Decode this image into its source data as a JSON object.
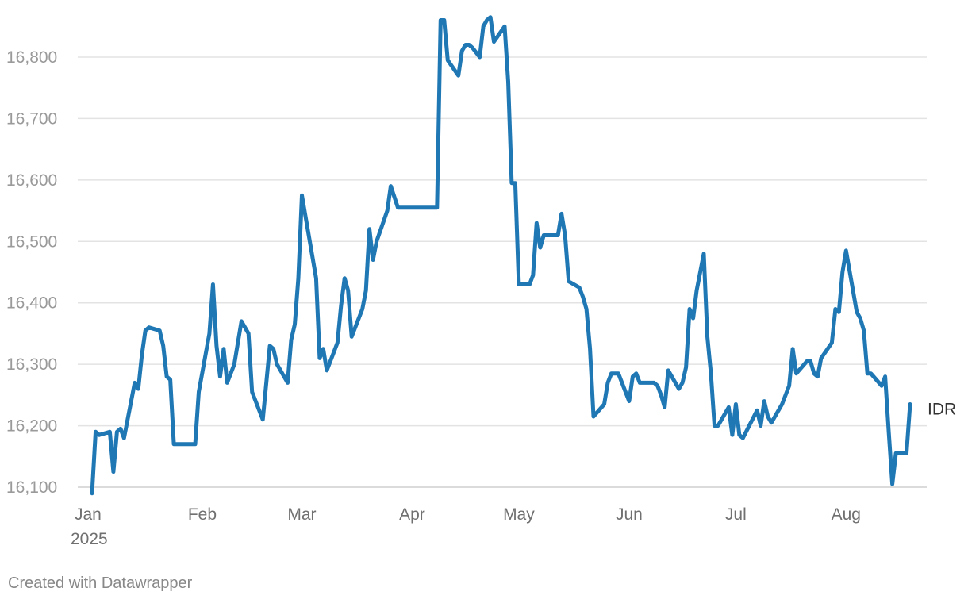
{
  "chart_data": {
    "type": "line",
    "title": "",
    "xlabel": "",
    "ylabel": "",
    "ylim": [
      16085,
      16880
    ],
    "yticks": [
      16100,
      16200,
      16300,
      16400,
      16500,
      16600,
      16700,
      16800
    ],
    "ytick_labels": [
      "16,100",
      "16,200",
      "16,300",
      "16,400",
      "16,500",
      "16,600",
      "16,700",
      "16,800"
    ],
    "xticks": [
      {
        "date": "2025-01-01",
        "label": "Jan",
        "sublabel": "2025"
      },
      {
        "date": "2025-02-01",
        "label": "Feb",
        "sublabel": ""
      },
      {
        "date": "2025-03-01",
        "label": "Mar",
        "sublabel": ""
      },
      {
        "date": "2025-04-01",
        "label": "Apr",
        "sublabel": ""
      },
      {
        "date": "2025-05-01",
        "label": "May",
        "sublabel": ""
      },
      {
        "date": "2025-06-01",
        "label": "Jun",
        "sublabel": ""
      },
      {
        "date": "2025-07-01",
        "label": "Jul",
        "sublabel": ""
      },
      {
        "date": "2025-08-01",
        "label": "Aug",
        "sublabel": ""
      }
    ],
    "grid": true,
    "series": [
      {
        "name": "IDR",
        "color": "#1f77b4",
        "points": [
          [
            "2025-01-01",
            16090
          ],
          [
            "2025-01-02",
            16190
          ],
          [
            "2025-01-03",
            16185
          ],
          [
            "2025-01-06",
            16190
          ],
          [
            "2025-01-07",
            16125
          ],
          [
            "2025-01-08",
            16190
          ],
          [
            "2025-01-09",
            16195
          ],
          [
            "2025-01-10",
            16180
          ],
          [
            "2025-01-13",
            16270
          ],
          [
            "2025-01-14",
            16260
          ],
          [
            "2025-01-15",
            16315
          ],
          [
            "2025-01-16",
            16355
          ],
          [
            "2025-01-17",
            16360
          ],
          [
            "2025-01-20",
            16355
          ],
          [
            "2025-01-21",
            16330
          ],
          [
            "2025-01-22",
            16280
          ],
          [
            "2025-01-23",
            16275
          ],
          [
            "2025-01-24",
            16170
          ],
          [
            "2025-01-30",
            16170
          ],
          [
            "2025-01-31",
            16255
          ],
          [
            "2025-02-03",
            16350
          ],
          [
            "2025-02-04",
            16430
          ],
          [
            "2025-02-05",
            16330
          ],
          [
            "2025-02-06",
            16280
          ],
          [
            "2025-02-07",
            16325
          ],
          [
            "2025-02-08",
            16270
          ],
          [
            "2025-02-10",
            16300
          ],
          [
            "2025-02-12",
            16370
          ],
          [
            "2025-02-14",
            16350
          ],
          [
            "2025-02-15",
            16255
          ],
          [
            "2025-02-18",
            16210
          ],
          [
            "2025-02-20",
            16330
          ],
          [
            "2025-02-21",
            16325
          ],
          [
            "2025-02-22",
            16300
          ],
          [
            "2025-02-25",
            16270
          ],
          [
            "2025-02-26",
            16340
          ],
          [
            "2025-02-27",
            16365
          ],
          [
            "2025-02-28",
            16440
          ],
          [
            "2025-03-01",
            16575
          ],
          [
            "2025-03-05",
            16440
          ],
          [
            "2025-03-06",
            16310
          ],
          [
            "2025-03-07",
            16325
          ],
          [
            "2025-03-08",
            16290
          ],
          [
            "2025-03-11",
            16335
          ],
          [
            "2025-03-12",
            16395
          ],
          [
            "2025-03-13",
            16440
          ],
          [
            "2025-03-14",
            16420
          ],
          [
            "2025-03-15",
            16345
          ],
          [
            "2025-03-18",
            16390
          ],
          [
            "2025-03-19",
            16420
          ],
          [
            "2025-03-20",
            16520
          ],
          [
            "2025-03-21",
            16470
          ],
          [
            "2025-03-22",
            16500
          ],
          [
            "2025-03-25",
            16550
          ],
          [
            "2025-03-26",
            16590
          ],
          [
            "2025-03-28",
            16555
          ],
          [
            "2025-04-08",
            16555
          ],
          [
            "2025-04-09",
            16860
          ],
          [
            "2025-04-10",
            16860
          ],
          [
            "2025-04-11",
            16795
          ],
          [
            "2025-04-14",
            16770
          ],
          [
            "2025-04-15",
            16810
          ],
          [
            "2025-04-16",
            16820
          ],
          [
            "2025-04-17",
            16820
          ],
          [
            "2025-04-18",
            16815
          ],
          [
            "2025-04-20",
            16800
          ],
          [
            "2025-04-21",
            16850
          ],
          [
            "2025-04-22",
            16860
          ],
          [
            "2025-04-23",
            16865
          ],
          [
            "2025-04-24",
            16825
          ],
          [
            "2025-04-27",
            16850
          ],
          [
            "2025-04-28",
            16760
          ],
          [
            "2025-04-29",
            16595
          ],
          [
            "2025-04-30",
            16595
          ],
          [
            "2025-05-01",
            16430
          ],
          [
            "2025-05-04",
            16430
          ],
          [
            "2025-05-05",
            16445
          ],
          [
            "2025-05-06",
            16530
          ],
          [
            "2025-05-07",
            16490
          ],
          [
            "2025-05-08",
            16510
          ],
          [
            "2025-05-12",
            16510
          ],
          [
            "2025-05-13",
            16545
          ],
          [
            "2025-05-14",
            16510
          ],
          [
            "2025-05-15",
            16435
          ],
          [
            "2025-05-18",
            16425
          ],
          [
            "2025-05-19",
            16410
          ],
          [
            "2025-05-20",
            16390
          ],
          [
            "2025-05-21",
            16325
          ],
          [
            "2025-05-22",
            16215
          ],
          [
            "2025-05-25",
            16235
          ],
          [
            "2025-05-26",
            16270
          ],
          [
            "2025-05-27",
            16285
          ],
          [
            "2025-05-29",
            16285
          ],
          [
            "2025-06-01",
            16240
          ],
          [
            "2025-06-02",
            16280
          ],
          [
            "2025-06-03",
            16285
          ],
          [
            "2025-06-04",
            16270
          ],
          [
            "2025-06-08",
            16270
          ],
          [
            "2025-06-09",
            16265
          ],
          [
            "2025-06-10",
            16250
          ],
          [
            "2025-06-11",
            16230
          ],
          [
            "2025-06-12",
            16290
          ],
          [
            "2025-06-15",
            16260
          ],
          [
            "2025-06-16",
            16270
          ],
          [
            "2025-06-17",
            16295
          ],
          [
            "2025-06-18",
            16390
          ],
          [
            "2025-06-19",
            16375
          ],
          [
            "2025-06-20",
            16420
          ],
          [
            "2025-06-22",
            16480
          ],
          [
            "2025-06-23",
            16345
          ],
          [
            "2025-06-24",
            16285
          ],
          [
            "2025-06-25",
            16200
          ],
          [
            "2025-06-26",
            16200
          ],
          [
            "2025-06-29",
            16230
          ],
          [
            "2025-06-30",
            16185
          ],
          [
            "2025-07-01",
            16235
          ],
          [
            "2025-07-02",
            16185
          ],
          [
            "2025-07-03",
            16180
          ],
          [
            "2025-07-07",
            16225
          ],
          [
            "2025-07-08",
            16200
          ],
          [
            "2025-07-09",
            16240
          ],
          [
            "2025-07-10",
            16215
          ],
          [
            "2025-07-11",
            16205
          ],
          [
            "2025-07-14",
            16235
          ],
          [
            "2025-07-15",
            16250
          ],
          [
            "2025-07-16",
            16265
          ],
          [
            "2025-07-17",
            16325
          ],
          [
            "2025-07-18",
            16285
          ],
          [
            "2025-07-21",
            16305
          ],
          [
            "2025-07-22",
            16305
          ],
          [
            "2025-07-23",
            16285
          ],
          [
            "2025-07-24",
            16280
          ],
          [
            "2025-07-25",
            16310
          ],
          [
            "2025-07-28",
            16335
          ],
          [
            "2025-07-29",
            16390
          ],
          [
            "2025-07-30",
            16385
          ],
          [
            "2025-07-31",
            16450
          ],
          [
            "2025-08-01",
            16485
          ],
          [
            "2025-08-04",
            16385
          ],
          [
            "2025-08-05",
            16375
          ],
          [
            "2025-08-06",
            16355
          ],
          [
            "2025-08-07",
            16285
          ],
          [
            "2025-08-08",
            16285
          ],
          [
            "2025-08-11",
            16265
          ],
          [
            "2025-08-12",
            16280
          ],
          [
            "2025-08-13",
            16190
          ],
          [
            "2025-08-14",
            16105
          ],
          [
            "2025-08-15",
            16155
          ],
          [
            "2025-08-18",
            16155
          ],
          [
            "2025-08-19",
            16235
          ]
        ]
      }
    ]
  },
  "footer": {
    "credit": "Created with Datawrapper"
  }
}
